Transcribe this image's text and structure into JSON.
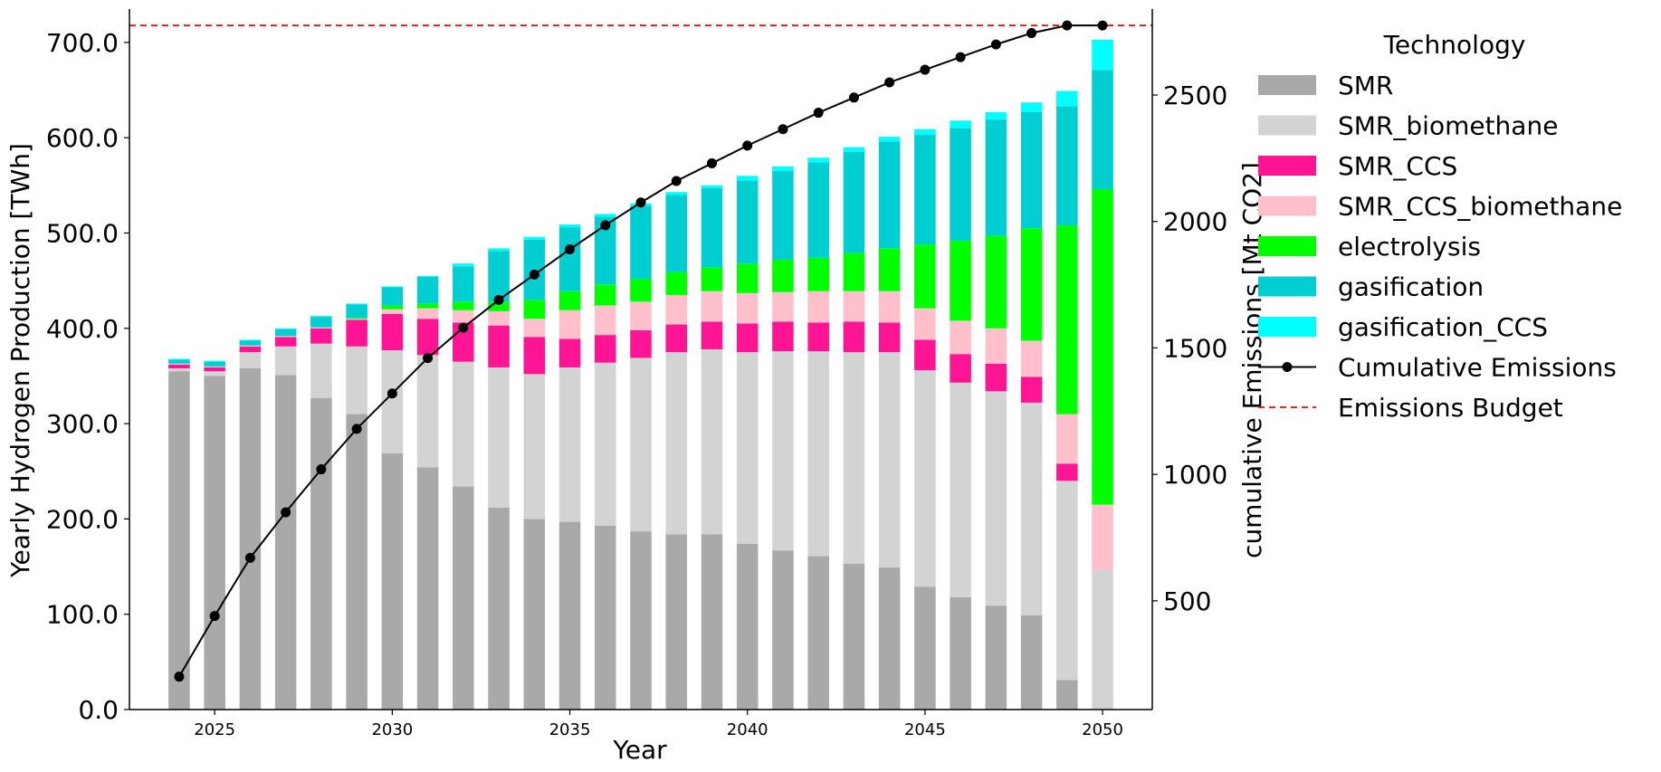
{
  "chart_data": {
    "type": "bar",
    "stacked": true,
    "xlabel": "Year",
    "ylabel": "Yearly Hydrogen Production [TWh]",
    "y2label": "cumulative Emissions [Mt CO2]",
    "legend_title": "Technology",
    "legend_position": "right",
    "ylim": [
      0,
      735
    ],
    "y2lim": [
      70,
      2840
    ],
    "x_ticks": [
      "2025",
      "2030",
      "2035",
      "2040",
      "2045",
      "2050"
    ],
    "y_ticks": [
      "0.0",
      "100.0",
      "200.0",
      "300.0",
      "400.0",
      "500.0",
      "600.0",
      "700.0"
    ],
    "y2_ticks": [
      "500",
      "1000",
      "1500",
      "2000",
      "2500"
    ],
    "grid": false,
    "x": [
      2024,
      2025,
      2026,
      2027,
      2028,
      2029,
      2030,
      2031,
      2032,
      2033,
      2034,
      2035,
      2036,
      2037,
      2038,
      2039,
      2040,
      2041,
      2042,
      2043,
      2044,
      2045,
      2046,
      2047,
      2048,
      2049,
      2050
    ],
    "series": [
      {
        "name": "SMR",
        "color": "#a9a9a9",
        "values": [
          355,
          350,
          358,
          351,
          327,
          310,
          269,
          254,
          234,
          212,
          200,
          197,
          193,
          187,
          184,
          184,
          174,
          167,
          161,
          153,
          149,
          129,
          118,
          109,
          99,
          31,
          0
        ]
      },
      {
        "name": "SMR_biomethane",
        "color": "#d3d3d3",
        "values": [
          3,
          5,
          17,
          30,
          57,
          71,
          108,
          118,
          131,
          147,
          152,
          162,
          171,
          182,
          191,
          194,
          201,
          209,
          215,
          222,
          226,
          227,
          225,
          225,
          223,
          209,
          147
        ]
      },
      {
        "name": "SMR_CCS",
        "color": "#ff1493",
        "values": [
          4,
          4,
          6,
          10,
          16,
          28,
          38,
          38,
          41,
          44,
          39,
          30,
          29,
          29,
          29,
          29,
          30,
          31,
          30,
          32,
          31,
          32,
          30,
          29,
          27,
          18,
          0
        ]
      },
      {
        "name": "SMR_CCS_biomethane",
        "color": "#ffc0cb",
        "values": [
          1,
          1,
          1,
          1,
          1,
          1,
          5,
          11,
          13,
          15,
          19,
          30,
          31,
          30,
          31,
          32,
          32,
          31,
          33,
          32,
          33,
          33,
          35,
          37,
          38,
          52,
          68
        ]
      },
      {
        "name": "electrolysis",
        "color": "#00ff00",
        "values": [
          0,
          0,
          0,
          0,
          0,
          1,
          4,
          5,
          9,
          10,
          20,
          20,
          22,
          24,
          24,
          25,
          31,
          34,
          35,
          40,
          45,
          67,
          84,
          97,
          118,
          198,
          331
        ]
      },
      {
        "name": "gasification",
        "color": "#00ced1",
        "values": [
          4,
          5,
          5,
          7,
          11,
          14,
          19,
          28,
          37,
          53,
          63,
          67,
          71,
          76,
          81,
          83,
          87,
          93,
          100,
          106,
          112,
          115,
          118,
          122,
          122,
          125,
          125
        ]
      },
      {
        "name": "gasification_CCS",
        "color": "#00ffff",
        "values": [
          1,
          1,
          1,
          1,
          1,
          1,
          1,
          1,
          3,
          3,
          3,
          3,
          3,
          3,
          3,
          3,
          5,
          5,
          5,
          5,
          5,
          6,
          8,
          8,
          10,
          16,
          32
        ]
      }
    ],
    "line_series": [
      {
        "name": "Cumulative Emissions",
        "color": "#000000",
        "axis": "right",
        "values": [
          200,
          440,
          670,
          850,
          1020,
          1180,
          1320,
          1460,
          1580,
          1690,
          1790,
          1890,
          1985,
          2075,
          2160,
          2230,
          2300,
          2365,
          2430,
          2490,
          2550,
          2600,
          2650,
          2700,
          2745,
          2775,
          2775
        ]
      }
    ],
    "hlines": [
      {
        "name": "Emissions Budget",
        "color": "#ff0000",
        "style": "dashed",
        "axis": "right",
        "value": 2775
      }
    ]
  }
}
